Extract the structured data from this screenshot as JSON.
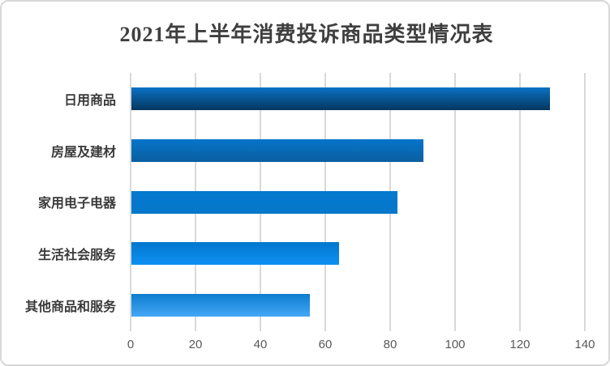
{
  "chart_data": {
    "type": "bar",
    "orientation": "horizontal",
    "title": "2021年上半年消费投诉商品类型情况表",
    "categories": [
      "日用商品",
      "房屋及建材",
      "家用电子电器",
      "生活社会服务",
      "其他商品和服务"
    ],
    "values": [
      129,
      90,
      82,
      64,
      55
    ],
    "x_ticks": [
      0,
      20,
      40,
      60,
      80,
      100,
      120,
      140
    ],
    "xlim": [
      0,
      140
    ],
    "xlabel": "",
    "ylabel": "",
    "grid": "vertical-only",
    "legend": "none",
    "data_labels": "none",
    "bar_gradients": [
      [
        "#0b72c4",
        "#04375f"
      ],
      [
        "#0575cb",
        "#0b5fa0"
      ],
      [
        "#0379cf",
        "#0678cb"
      ],
      [
        "#0277cd",
        "#0d90f2"
      ],
      [
        "#0e7ccf",
        "#44a8f6"
      ]
    ]
  },
  "style": {
    "title_color": "#3f3f3f",
    "label_color": "#3a3a3a",
    "tick_color": "#595959",
    "gridline_color": "#d9d9d9",
    "border_color": "#d8d8d8",
    "background": "#ffffff"
  }
}
